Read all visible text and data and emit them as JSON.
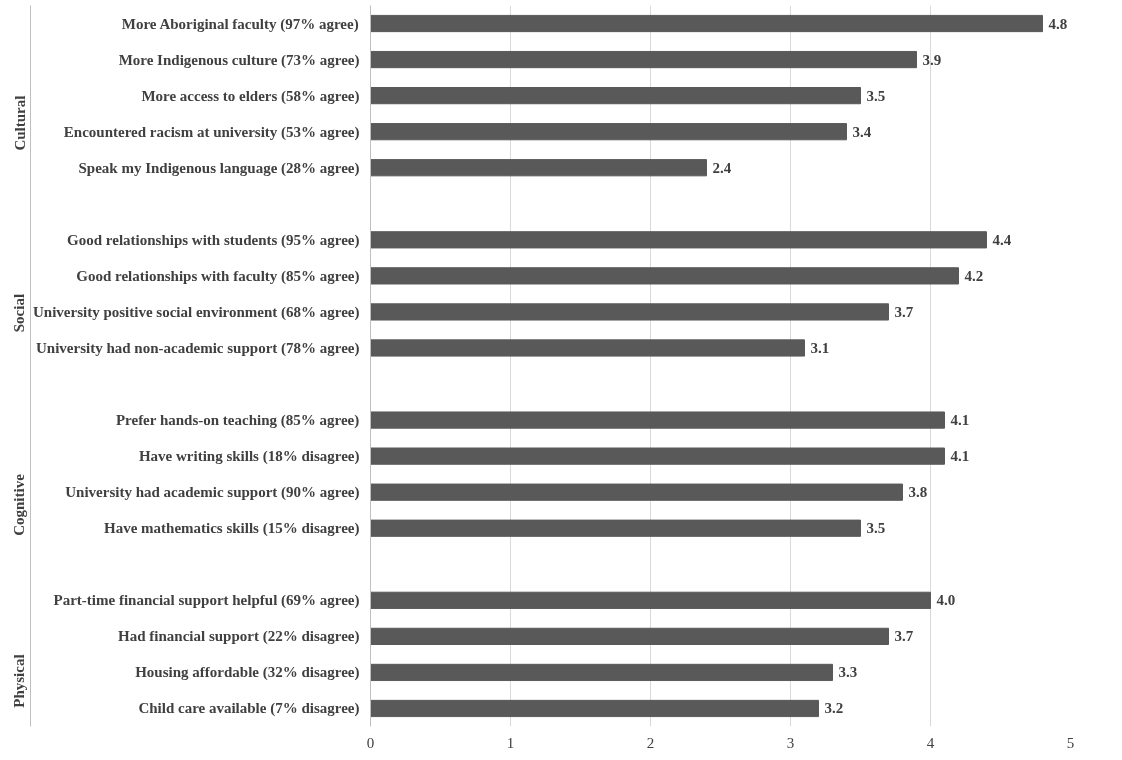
{
  "chart_data": {
    "type": "bar",
    "orientation": "horizontal",
    "categories": [
      "More Aboriginal faculty (97% agree)",
      "More Indigenous culture (73% agree)",
      "More access to elders (58% agree)",
      "Encountered racism at university (53% agree)",
      "Speak my Indigenous language (28% agree)",
      null,
      "Good relationships with students (95% agree)",
      "Good relationships with faculty (85% agree)",
      "University positive social environment (68% agree)",
      "University had non-academic support (78% agree)",
      null,
      "Prefer hands-on teaching (85% agree)",
      "Have writing skills (18% disagree)",
      "University had academic support (90% agree)",
      "Have mathematics skills (15% disagree)",
      null,
      "Part-time financial support helpful (69% agree)",
      "Had financial support (22% disagree)",
      "Housing affordable (32% disagree)",
      "Child care available (7% disagree)"
    ],
    "values": [
      4.8,
      3.9,
      3.5,
      3.4,
      2.4,
      null,
      4.4,
      4.2,
      3.7,
      3.1,
      null,
      4.1,
      4.1,
      3.8,
      3.5,
      null,
      4.0,
      3.7,
      3.3,
      3.2
    ],
    "value_labels": [
      "4.8",
      "3.9",
      "3.5",
      "3.4",
      "2.4",
      null,
      "4.4",
      "4.2",
      "3.7",
      "3.1",
      null,
      "4.1",
      "4.1",
      "3.8",
      "3.5",
      null,
      "4.0",
      "3.7",
      "3.3",
      "3.2"
    ],
    "color": "#595959",
    "xlim": [
      0,
      5
    ],
    "xticks": [
      0,
      1,
      2,
      3,
      4,
      5
    ],
    "grid": "x",
    "annotations": [
      "Cultural",
      "Social",
      "Cognitive",
      "Physical"
    ]
  }
}
